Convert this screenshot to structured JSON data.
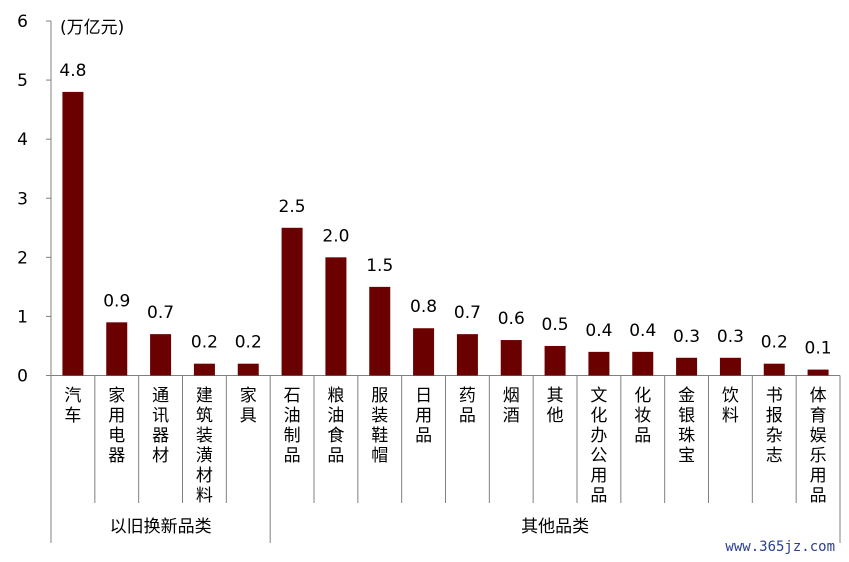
{
  "chart_data": {
    "type": "bar",
    "unit_label": "(万亿元)",
    "ylim": [
      0,
      6
    ],
    "yticks": [
      "0",
      "1",
      "2",
      "3",
      "4",
      "5",
      "6"
    ],
    "categories": [
      "汽车",
      "家用电器",
      "通讯器材",
      "建筑装潢材料",
      "家具",
      "石油制品",
      "粮油食品",
      "服装鞋帽",
      "日用品",
      "药品",
      "烟酒",
      "其他",
      "文化办公用品",
      "化妆品",
      "金银珠宝",
      "饮料",
      "书报杂志",
      "体育娱乐用品"
    ],
    "values": [
      4.8,
      0.9,
      0.7,
      0.2,
      0.2,
      2.5,
      2.0,
      1.5,
      0.8,
      0.7,
      0.6,
      0.5,
      0.4,
      0.4,
      0.3,
      0.3,
      0.2,
      0.1
    ],
    "value_labels": [
      "4.8",
      "0.9",
      "0.7",
      "0.2",
      "0.2",
      "2.5",
      "2.0",
      "1.5",
      "0.8",
      "0.7",
      "0.6",
      "0.5",
      "0.4",
      "0.4",
      "0.3",
      "0.3",
      "0.2",
      "0.1"
    ],
    "groups": [
      {
        "label": "以旧换新品类",
        "count": 5
      },
      {
        "label": "其他品类",
        "count": 13
      }
    ],
    "bar_color": "#6b0000",
    "grid": false,
    "legend": "none"
  },
  "watermark": "www.365jz.com"
}
